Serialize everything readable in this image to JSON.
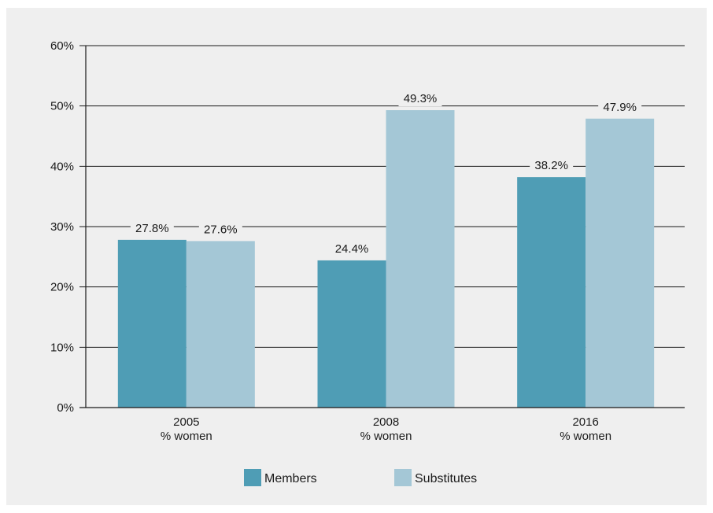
{
  "chart_data": {
    "type": "bar",
    "categories": [
      "2005\n% women",
      "2008\n% women",
      "2016\n% women"
    ],
    "series": [
      {
        "name": "Members",
        "values": [
          27.8,
          24.4,
          38.2
        ],
        "color": "#4f9db5"
      },
      {
        "name": "Substitutes",
        "values": [
          27.6,
          49.3,
          47.9
        ],
        "color": "#a4c7d6"
      }
    ],
    "data_labels": [
      [
        "27.8%",
        "24.4%",
        "38.2%"
      ],
      [
        "27.6%",
        "49.3%",
        "47.9%"
      ]
    ],
    "y_ticks": [
      "0%",
      "10%",
      "20%",
      "30%",
      "40%",
      "50%",
      "60%"
    ],
    "ylim": [
      0,
      60
    ],
    "grid": true,
    "legend_position": "bottom-center",
    "background_color": "#efefef",
    "gridline_color": "#1a1a1a"
  }
}
